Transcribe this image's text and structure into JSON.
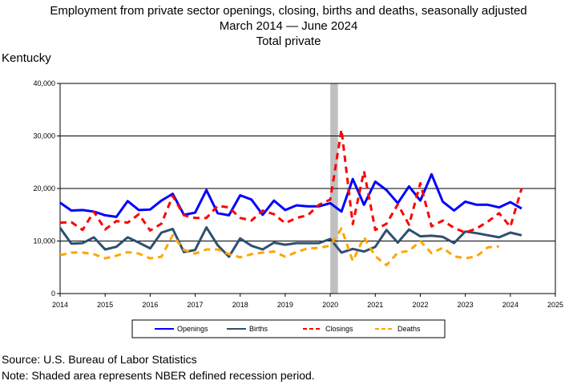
{
  "title_lines": [
    "Employment from private sector openings, closing, births and deaths, seasonally adjusted",
    "March 2014 — June 2024",
    "Total private"
  ],
  "region": "Kentucky",
  "source": "Source: U.S. Bureau of Labor Statistics",
  "note": "Note: Shaded area represents NBER defined recession period.",
  "chart_data": {
    "type": "line",
    "title": "Employment from private sector openings, closing, births and deaths, seasonally adjusted",
    "subtitle": "March 2014 — June 2024 Total private",
    "xlabel": "",
    "ylabel": "",
    "xlim": [
      2014,
      2025
    ],
    "ylim": [
      0,
      40000
    ],
    "x_ticks": [
      "2014",
      "2015",
      "2016",
      "2017",
      "2018",
      "2019",
      "2020",
      "2021",
      "2022",
      "2023",
      "2024",
      "2025"
    ],
    "y_ticks": [
      "0",
      "10,000",
      "20,000",
      "30,000",
      "40,000"
    ],
    "grid": "horizontal",
    "legend_position": "bottom",
    "recession": {
      "start": 2020.0,
      "end": 2020.17
    },
    "x": [
      2014.0,
      2014.25,
      2014.5,
      2014.75,
      2015.0,
      2015.25,
      2015.5,
      2015.75,
      2016.0,
      2016.25,
      2016.5,
      2016.75,
      2017.0,
      2017.25,
      2017.5,
      2017.75,
      2018.0,
      2018.25,
      2018.5,
      2018.75,
      2019.0,
      2019.25,
      2019.5,
      2019.75,
      2020.0,
      2020.25,
      2020.5,
      2020.75,
      2021.0,
      2021.25,
      2021.5,
      2021.75,
      2022.0,
      2022.25,
      2022.5,
      2022.75,
      2023.0,
      2023.25,
      2023.5,
      2023.75,
      2024.0,
      2024.25
    ],
    "series": [
      {
        "name": "Openings",
        "color": "#0000ff",
        "dash": "solid",
        "values": [
          17300,
          15800,
          15900,
          15600,
          14900,
          14600,
          17600,
          15900,
          16000,
          17700,
          19000,
          15000,
          15400,
          19700,
          15300,
          14900,
          18700,
          17900,
          15000,
          17700,
          15900,
          16800,
          16600,
          16600,
          17200,
          15600,
          21800,
          16900,
          21300,
          19700,
          17200,
          20400,
          17700,
          22700,
          17500,
          15800,
          17500,
          16900,
          16900,
          16400,
          17400,
          16200
        ]
      },
      {
        "name": "Births",
        "color": "#2f4f6f",
        "dash": "solid",
        "values": [
          12500,
          9500,
          9600,
          10700,
          8400,
          8900,
          10700,
          9700,
          8600,
          11600,
          12300,
          7900,
          8300,
          12600,
          9200,
          7000,
          10500,
          9100,
          8400,
          9700,
          9300,
          9600,
          9600,
          9600,
          10400,
          7800,
          8500,
          8000,
          8900,
          12100,
          9700,
          12200,
          10900,
          11000,
          10800,
          9600,
          11800,
          11500,
          11100,
          10700,
          11600,
          11100
        ]
      },
      {
        "name": "Closings",
        "color": "#ff0000",
        "dash": "dashed",
        "values": [
          13500,
          13600,
          12100,
          15600,
          12200,
          13800,
          13500,
          15100,
          12000,
          13300,
          18600,
          14900,
          14400,
          14400,
          16700,
          16400,
          14400,
          13900,
          15800,
          15100,
          13400,
          14400,
          14900,
          16900,
          17900,
          31200,
          13200,
          23300,
          12100,
          13300,
          17000,
          13100,
          21000,
          12800,
          13900,
          12500,
          11600,
          12400,
          13700,
          15300,
          12700,
          20000
        ]
      },
      {
        "name": "Deaths",
        "color": "#ffa500",
        "dash": "dashed",
        "values": [
          7300,
          7800,
          7800,
          7500,
          6700,
          7200,
          7900,
          7600,
          6700,
          7000,
          11100,
          8300,
          7600,
          8400,
          8400,
          7500,
          6900,
          7500,
          7800,
          8000,
          7000,
          7900,
          8600,
          8700,
          9100,
          12400,
          6200,
          10700,
          7100,
          5400,
          7800,
          8100,
          10000,
          7700,
          8700,
          7100,
          6700,
          7100,
          8800,
          9000,
          null,
          null
        ]
      }
    ]
  }
}
